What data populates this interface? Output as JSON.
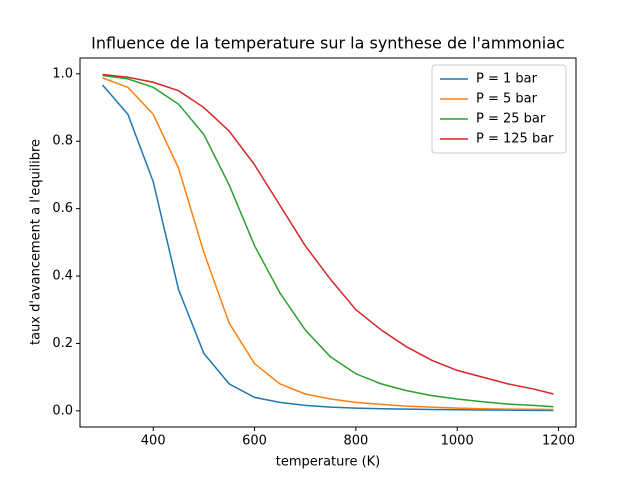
{
  "chart_data": {
    "type": "line",
    "title": "Influence de la temperature sur la synthese de l'ammoniac",
    "x_label": "temperature (K)",
    "y_label": "taux d'avancement a l'equilibre",
    "x": [
      300,
      350,
      400,
      450,
      500,
      550,
      600,
      650,
      700,
      750,
      800,
      850,
      900,
      950,
      1000,
      1050,
      1100,
      1150,
      1190
    ],
    "series": [
      {
        "name": "P = 1 bar",
        "color": "#1f77b4",
        "values": [
          0.967,
          0.88,
          0.68,
          0.36,
          0.17,
          0.08,
          0.04,
          0.025,
          0.016,
          0.011,
          0.008,
          0.006,
          0.005,
          0.004,
          0.003,
          0.0025,
          0.002,
          0.0015,
          0.001
        ]
      },
      {
        "name": "P = 5 bar",
        "color": "#ff7f0e",
        "values": [
          0.988,
          0.96,
          0.88,
          0.72,
          0.47,
          0.26,
          0.14,
          0.08,
          0.05,
          0.035,
          0.025,
          0.019,
          0.014,
          0.011,
          0.008,
          0.006,
          0.005,
          0.0045,
          0.004
        ]
      },
      {
        "name": "P = 25 bar",
        "color": "#2ca02c",
        "values": [
          0.995,
          0.985,
          0.96,
          0.91,
          0.82,
          0.67,
          0.49,
          0.35,
          0.24,
          0.16,
          0.11,
          0.08,
          0.06,
          0.045,
          0.035,
          0.027,
          0.02,
          0.016,
          0.012
        ]
      },
      {
        "name": "P = 125 bar",
        "color": "#d62728",
        "values": [
          0.998,
          0.99,
          0.975,
          0.95,
          0.9,
          0.83,
          0.73,
          0.61,
          0.49,
          0.39,
          0.3,
          0.24,
          0.19,
          0.15,
          0.12,
          0.1,
          0.08,
          0.065,
          0.05
        ]
      }
    ],
    "xlim": [
      255.5,
      1234.5
    ],
    "ylim": [
      -0.048,
      1.047
    ],
    "xticks": [
      400,
      600,
      800,
      1000,
      1200
    ],
    "yticks": [
      {
        "value": 0,
        "label": "0.0"
      },
      {
        "value": 0.2,
        "label": "0.2"
      },
      {
        "value": 0.4,
        "label": "0.4"
      },
      {
        "value": 0.6,
        "label": "0.6"
      },
      {
        "value": 0.8,
        "label": "0.8"
      },
      {
        "value": 1,
        "label": "1.0"
      }
    ],
    "legend": "upper right"
  }
}
